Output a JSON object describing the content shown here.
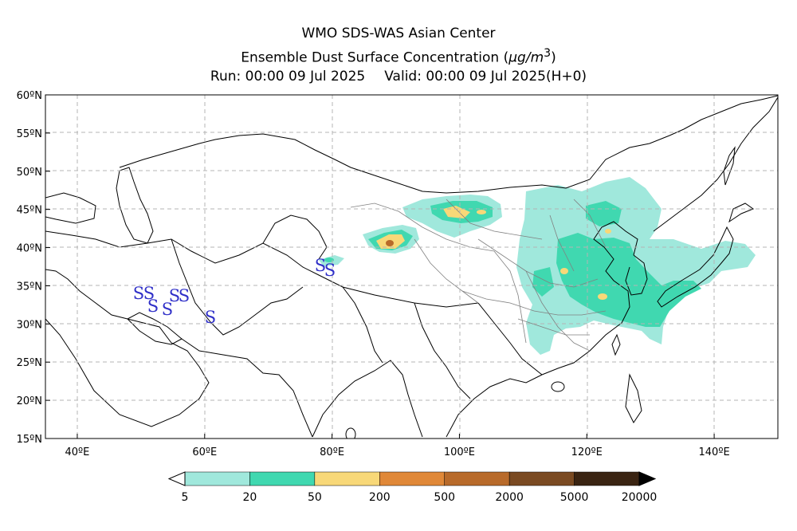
{
  "title": {
    "line1": "WMO SDS-WAS Asian Center",
    "line2_prefix": "Ensemble Dust Surface Concentration (",
    "line2_unit": "μg/m",
    "line2_sup": "3",
    "line2_suffix": ")",
    "run": "Run: 00:00 09 Jul 2025",
    "valid": "Valid: 00:00 09 Jul 2025(H+0)"
  },
  "axes": {
    "lon_labels": [
      "40ºE",
      "60ºE",
      "80ºE",
      "100ºE",
      "120ºE",
      "140ºE"
    ],
    "lon_values": [
      40,
      60,
      80,
      100,
      120,
      140
    ],
    "lat_labels": [
      "15ºN",
      "20ºN",
      "25ºN",
      "30ºN",
      "35ºN",
      "40ºN",
      "45ºN",
      "50ºN",
      "55ºN",
      "60ºN"
    ],
    "lat_values": [
      15,
      20,
      25,
      30,
      35,
      40,
      45,
      50,
      55,
      60
    ],
    "lon_range": [
      35,
      150
    ],
    "lat_range": [
      15,
      60
    ],
    "grid": true
  },
  "legend": {
    "levels": [
      "5",
      "20",
      "50",
      "200",
      "500",
      "2000",
      "5000",
      "20000"
    ],
    "colors": [
      "#a0e8dc",
      "#40d8b0",
      "#f8d878",
      "#e08838",
      "#b86a2a",
      "#7a4a22",
      "#3a2412"
    ],
    "extend": "both"
  },
  "colors": {
    "lv1": "#a0e8dc",
    "lv2": "#40d8b0",
    "lv3": "#f8d878",
    "lv4": "#e08838",
    "lv5": "#b86a2a",
    "sand_symbol": "#3030c8",
    "coast": "#000000",
    "china_provinces": "#808080",
    "grid": "#b4b4b4"
  },
  "weather_symbols": {
    "label": "S",
    "meaning": "dust/sand observation symbol",
    "count": 9
  }
}
